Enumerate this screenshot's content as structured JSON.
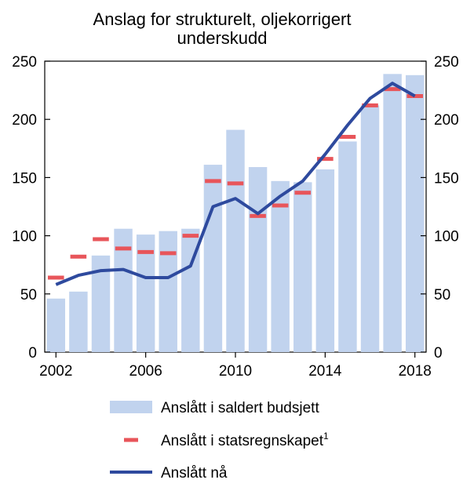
{
  "chart_data": {
    "type": "bar",
    "title_line1": "Anslag for strukturelt, oljekorrigert",
    "title_line2": "underskudd",
    "years": [
      2002,
      2003,
      2004,
      2005,
      2006,
      2007,
      2008,
      2009,
      2010,
      2011,
      2012,
      2013,
      2014,
      2015,
      2016,
      2017,
      2018
    ],
    "x_tick_labels": [
      "2002",
      "2006",
      "2010",
      "2014",
      "2018"
    ],
    "ylim": [
      0,
      250
    ],
    "y_ticks": [
      "0",
      "50",
      "100",
      "150",
      "200",
      "250"
    ],
    "grid": false,
    "legend_position": "bottom",
    "series": [
      {
        "name": "Anslått i saldert budsjett",
        "kind": "bar",
        "color": "#c1d3ee",
        "values": [
          46,
          52,
          83,
          106,
          101,
          104,
          106,
          161,
          191,
          159,
          147,
          146,
          157,
          181,
          212,
          239,
          238
        ]
      },
      {
        "name": "Anslått i statsregnskapet",
        "superscript": "1",
        "kind": "dash",
        "color": "#e8555a",
        "values": [
          64,
          82,
          97,
          89,
          86,
          85,
          100,
          147,
          145,
          117,
          126,
          137,
          166,
          185,
          212,
          226,
          220
        ]
      },
      {
        "name": "Anslått nå",
        "kind": "line",
        "color": "#2e4a9e",
        "values": [
          58,
          66,
          70,
          71,
          64,
          64,
          74,
          125,
          132,
          119,
          134,
          147,
          170,
          195,
          218,
          231,
          220
        ]
      }
    ]
  }
}
